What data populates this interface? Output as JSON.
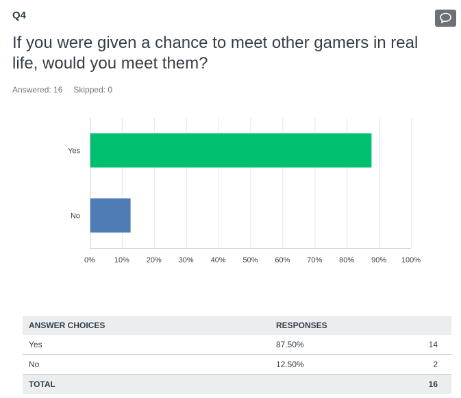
{
  "question": {
    "number": "Q4",
    "title": "If you were given a chance to meet other gamers in real life, would you meet them?",
    "answered": "Answered: 16",
    "skipped": "Skipped: 0"
  },
  "icons": {
    "comment": "comment-bubble-icon"
  },
  "colors": {
    "yes_bar": "#00bf6f",
    "no_bar": "#507cb6"
  },
  "chart_data": {
    "type": "bar",
    "orientation": "horizontal",
    "categories": [
      "Yes",
      "No"
    ],
    "values": [
      87.5,
      12.5
    ],
    "value_format": "percent",
    "xlim": [
      0,
      100
    ],
    "x_ticks": [
      "0%",
      "10%",
      "20%",
      "30%",
      "40%",
      "50%",
      "60%",
      "70%",
      "80%",
      "90%",
      "100%"
    ],
    "grid": true,
    "legend": false
  },
  "table": {
    "headers": {
      "choices": "ANSWER CHOICES",
      "responses": "RESPONSES"
    },
    "rows": [
      {
        "choice": "Yes",
        "percent": "87.50%",
        "count": "14"
      },
      {
        "choice": "No",
        "percent": "12.50%",
        "count": "2"
      }
    ],
    "total": {
      "label": "TOTAL",
      "count": "16"
    }
  }
}
